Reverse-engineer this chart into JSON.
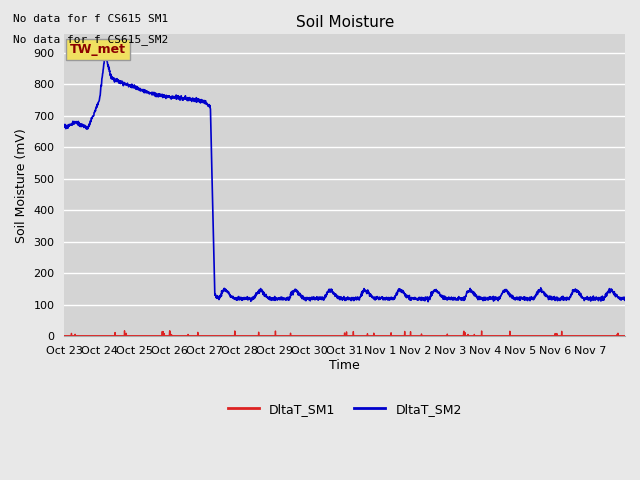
{
  "title": "Soil Moisture",
  "xlabel": "Time",
  "ylabel": "Soil Moisture (mV)",
  "no_data_text1": "No data for f CS615 SM1",
  "no_data_text2": "No data for f CS615_SM2",
  "annotation_text": "TW_met",
  "ylim": [
    0,
    960
  ],
  "yticks": [
    0,
    100,
    200,
    300,
    400,
    500,
    600,
    700,
    800,
    900
  ],
  "background_color": "#e8e8e8",
  "plot_bg_color": "#d4d4d4",
  "grid_color": "#ffffff",
  "sm1_color": "#dd2222",
  "sm2_color": "#0000cc",
  "legend_sm1": "DltaT_SM1",
  "legend_sm2": "DltaT_SM2",
  "xtick_labels": [
    "Oct 23",
    "Oct 24",
    "Oct 25",
    "Oct 26",
    "Oct 27",
    "Oct 28",
    "Oct 29",
    "Oct 30",
    "Oct 31",
    "Nov 1",
    "Nov 2",
    "Nov 3",
    "Nov 4",
    "Nov 5",
    "Nov 6",
    "Nov 7"
  ],
  "num_days": 16
}
